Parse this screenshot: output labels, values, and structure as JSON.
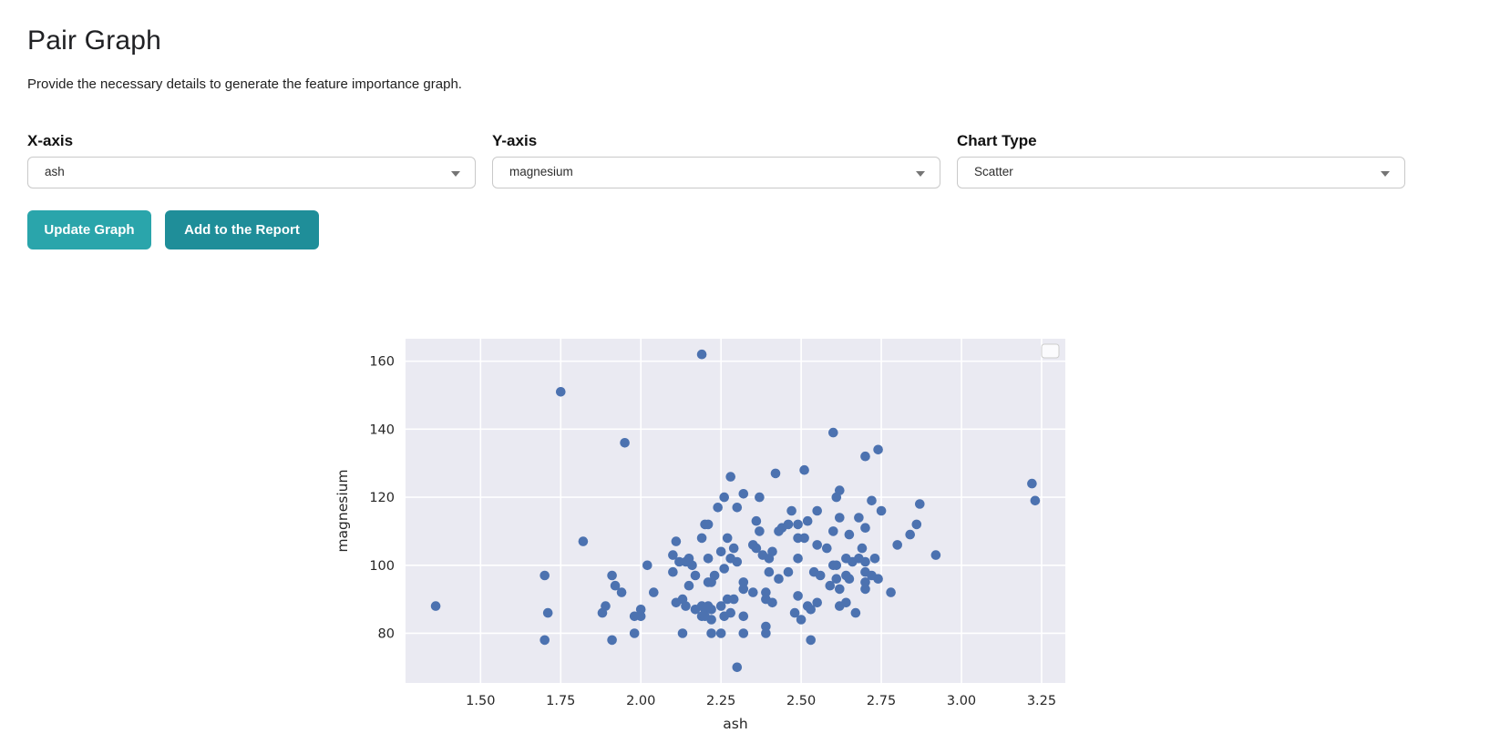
{
  "header": {
    "title": "Pair Graph",
    "subtitle": "Provide the necessary details to generate the feature importance graph."
  },
  "controls": {
    "x_axis": {
      "label": "X-axis",
      "value": "ash"
    },
    "y_axis": {
      "label": "Y-axis",
      "value": "magnesium"
    },
    "chart_type": {
      "label": "Chart Type",
      "value": "Scatter"
    }
  },
  "buttons": {
    "update_label": "Update Graph",
    "add_label": "Add to the Report"
  },
  "colors": {
    "button_update": "#2aa5ab",
    "button_add": "#1f8e99",
    "dot": "#4c72b0",
    "plot_bg": "#eaeaf2",
    "grid": "#ffffff",
    "tick_text": "#262626"
  },
  "chart_data": {
    "type": "scatter",
    "title": "",
    "xlabel": "ash",
    "ylabel": "magnesium",
    "xlim": [
      1.266,
      3.324
    ],
    "ylim": [
      65.4,
      166.6
    ],
    "xticks": [
      1.5,
      1.75,
      2.0,
      2.25,
      2.5,
      2.75,
      3.0,
      3.25
    ],
    "yticks": [
      80,
      100,
      120,
      140,
      160
    ],
    "grid": true,
    "legend": "empty-box-top-right",
    "points": [
      [
        1.75,
        151
      ],
      [
        2.19,
        162
      ],
      [
        1.95,
        136
      ],
      [
        2.28,
        126
      ],
      [
        2.42,
        127
      ],
      [
        2.51,
        128
      ],
      [
        2.32,
        121
      ],
      [
        2.26,
        120
      ],
      [
        2.37,
        120
      ],
      [
        2.3,
        117
      ],
      [
        2.6,
        139
      ],
      [
        2.74,
        134
      ],
      [
        2.7,
        132
      ],
      [
        2.62,
        122
      ],
      [
        2.61,
        120
      ],
      [
        2.72,
        119
      ],
      [
        2.87,
        118
      ],
      [
        1.82,
        107
      ],
      [
        1.7,
        97
      ],
      [
        1.36,
        88
      ],
      [
        1.71,
        86
      ],
      [
        1.88,
        86
      ],
      [
        1.7,
        78
      ],
      [
        2.02,
        100
      ],
      [
        1.91,
        97
      ],
      [
        1.92,
        94
      ],
      [
        1.94,
        92
      ],
      [
        2.04,
        92
      ],
      [
        1.89,
        88
      ],
      [
        1.98,
        85
      ],
      [
        2.0,
        85
      ],
      [
        2.0,
        87
      ],
      [
        1.98,
        80
      ],
      [
        1.91,
        78
      ],
      [
        2.11,
        107
      ],
      [
        2.2,
        112
      ],
      [
        2.21,
        112
      ],
      [
        2.19,
        108
      ],
      [
        2.1,
        103
      ],
      [
        2.12,
        101
      ],
      [
        2.14,
        101
      ],
      [
        2.15,
        102
      ],
      [
        2.16,
        100
      ],
      [
        2.21,
        102
      ],
      [
        2.1,
        98
      ],
      [
        2.17,
        97
      ],
      [
        2.21,
        95
      ],
      [
        2.22,
        95
      ],
      [
        2.15,
        94
      ],
      [
        2.13,
        90
      ],
      [
        2.11,
        89
      ],
      [
        2.14,
        88
      ],
      [
        2.17,
        87
      ],
      [
        2.19,
        88
      ],
      [
        2.2,
        87
      ],
      [
        2.21,
        88
      ],
      [
        2.19,
        85
      ],
      [
        2.2,
        85
      ],
      [
        2.22,
        84
      ],
      [
        2.13,
        80
      ],
      [
        2.24,
        117
      ],
      [
        2.47,
        116
      ],
      [
        2.36,
        113
      ],
      [
        2.37,
        110
      ],
      [
        2.44,
        111
      ],
      [
        2.46,
        112
      ],
      [
        2.43,
        110
      ],
      [
        2.49,
        112
      ],
      [
        2.52,
        113
      ],
      [
        2.27,
        108
      ],
      [
        2.49,
        108
      ],
      [
        2.51,
        108
      ],
      [
        2.55,
        106
      ],
      [
        2.29,
        105
      ],
      [
        2.35,
        106
      ],
      [
        2.36,
        105
      ],
      [
        2.41,
        104
      ],
      [
        2.38,
        103
      ],
      [
        2.4,
        102
      ],
      [
        2.28,
        102
      ],
      [
        2.3,
        101
      ],
      [
        2.49,
        102
      ],
      [
        2.25,
        104
      ],
      [
        2.26,
        99
      ],
      [
        2.23,
        97
      ],
      [
        2.4,
        98
      ],
      [
        2.43,
        96
      ],
      [
        2.46,
        98
      ],
      [
        2.32,
        95
      ],
      [
        2.32,
        93
      ],
      [
        2.35,
        92
      ],
      [
        2.39,
        92
      ],
      [
        2.39,
        90
      ],
      [
        2.41,
        89
      ],
      [
        2.49,
        91
      ],
      [
        2.52,
        88
      ],
      [
        2.53,
        87
      ],
      [
        2.27,
        90
      ],
      [
        2.29,
        90
      ],
      [
        2.25,
        88
      ],
      [
        2.22,
        87
      ],
      [
        2.26,
        85
      ],
      [
        2.28,
        86
      ],
      [
        2.32,
        85
      ],
      [
        2.48,
        86
      ],
      [
        2.5,
        84
      ],
      [
        2.32,
        80
      ],
      [
        2.25,
        80
      ],
      [
        2.22,
        80
      ],
      [
        2.39,
        82
      ],
      [
        2.39,
        80
      ],
      [
        2.53,
        78
      ],
      [
        2.3,
        70
      ],
      [
        2.75,
        116
      ],
      [
        2.55,
        116
      ],
      [
        2.62,
        114
      ],
      [
        2.68,
        114
      ],
      [
        2.6,
        110
      ],
      [
        2.65,
        109
      ],
      [
        2.7,
        111
      ],
      [
        2.86,
        112
      ],
      [
        2.84,
        109
      ],
      [
        2.8,
        106
      ],
      [
        2.58,
        105
      ],
      [
        2.69,
        105
      ],
      [
        2.92,
        103
      ],
      [
        2.64,
        102
      ],
      [
        2.66,
        101
      ],
      [
        2.68,
        102
      ],
      [
        2.7,
        101
      ],
      [
        2.6,
        100
      ],
      [
        2.61,
        100
      ],
      [
        2.73,
        102
      ],
      [
        2.54,
        98
      ],
      [
        2.56,
        97
      ],
      [
        2.61,
        96
      ],
      [
        2.59,
        94
      ],
      [
        2.62,
        93
      ],
      [
        2.64,
        97
      ],
      [
        2.65,
        96
      ],
      [
        2.7,
        98
      ],
      [
        2.7,
        95
      ],
      [
        2.7,
        93
      ],
      [
        2.72,
        97
      ],
      [
        2.74,
        96
      ],
      [
        2.78,
        92
      ],
      [
        2.55,
        89
      ],
      [
        2.62,
        88
      ],
      [
        2.64,
        89
      ],
      [
        2.67,
        86
      ],
      [
        3.22,
        124
      ],
      [
        3.23,
        119
      ]
    ]
  }
}
